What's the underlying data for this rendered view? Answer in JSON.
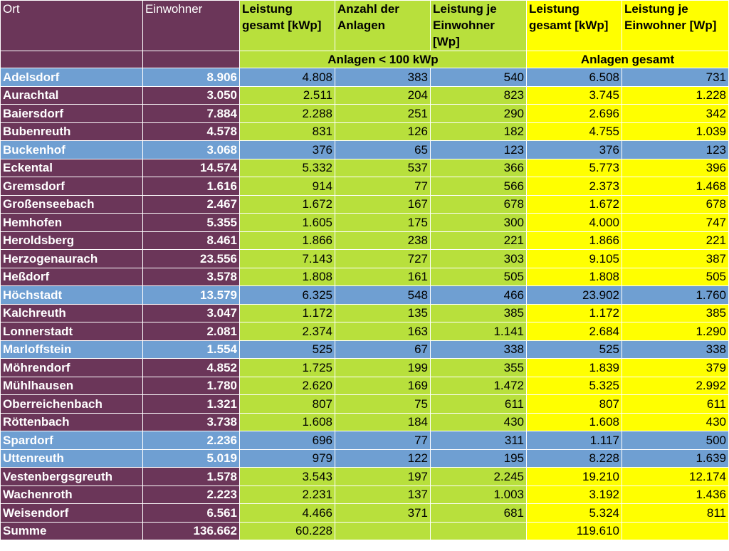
{
  "headers": {
    "ort": "Ort",
    "einwohner": "Einwohner",
    "leistung_gesamt": "Leistung gesamt [kWp]",
    "anzahl_anlagen": "Anzahl der Anlagen",
    "leistung_je_einwohner": "Leistung je Einwohner [Wp]",
    "leistung_gesamt_2": "Leistung gesamt [kWp]",
    "leistung_je_einwohner_2": "Leistung je Einwohner [Wp]",
    "group_small": "Anlagen < 100 kWp",
    "group_total": "Anlagen gesamt"
  },
  "colors": {
    "purple": "#6b3659",
    "green": "#b8e03c",
    "yellow": "#ffff00",
    "blue": "#6f9fd2"
  },
  "rows": [
    {
      "ort": "Adelsdorf",
      "einwohner": "8.906",
      "leistung": "4.808",
      "anzahl": "383",
      "je_einw": "540",
      "leistung_ges": "6.508",
      "je_einw_ges": "731",
      "highlight": true
    },
    {
      "ort": "Aurachtal",
      "einwohner": "3.050",
      "leistung": "2.511",
      "anzahl": "204",
      "je_einw": "823",
      "leistung_ges": "3.745",
      "je_einw_ges": "1.228",
      "highlight": false
    },
    {
      "ort": "Baiersdorf",
      "einwohner": "7.884",
      "leistung": "2.288",
      "anzahl": "251",
      "je_einw": "290",
      "leistung_ges": "2.696",
      "je_einw_ges": "342",
      "highlight": false
    },
    {
      "ort": "Bubenreuth",
      "einwohner": "4.578",
      "leistung": "831",
      "anzahl": "126",
      "je_einw": "182",
      "leistung_ges": "4.755",
      "je_einw_ges": "1.039",
      "highlight": false
    },
    {
      "ort": "Buckenhof",
      "einwohner": "3.068",
      "leistung": "376",
      "anzahl": "65",
      "je_einw": "123",
      "leistung_ges": "376",
      "je_einw_ges": "123",
      "highlight": true
    },
    {
      "ort": "Eckental",
      "einwohner": "14.574",
      "leistung": "5.332",
      "anzahl": "537",
      "je_einw": "366",
      "leistung_ges": "5.773",
      "je_einw_ges": "396",
      "highlight": false
    },
    {
      "ort": "Gremsdorf",
      "einwohner": "1.616",
      "leistung": "914",
      "anzahl": "77",
      "je_einw": "566",
      "leistung_ges": "2.373",
      "je_einw_ges": "1.468",
      "highlight": false
    },
    {
      "ort": "Großenseebach",
      "einwohner": "2.467",
      "leistung": "1.672",
      "anzahl": "167",
      "je_einw": "678",
      "leistung_ges": "1.672",
      "je_einw_ges": "678",
      "highlight": false
    },
    {
      "ort": "Hemhofen",
      "einwohner": "5.355",
      "leistung": "1.605",
      "anzahl": "175",
      "je_einw": "300",
      "leistung_ges": "4.000",
      "je_einw_ges": "747",
      "highlight": false
    },
    {
      "ort": "Heroldsberg",
      "einwohner": "8.461",
      "leistung": "1.866",
      "anzahl": "238",
      "je_einw": "221",
      "leistung_ges": "1.866",
      "je_einw_ges": "221",
      "highlight": false
    },
    {
      "ort": "Herzogenaurach",
      "einwohner": "23.556",
      "leistung": "7.143",
      "anzahl": "727",
      "je_einw": "303",
      "leistung_ges": "9.105",
      "je_einw_ges": "387",
      "highlight": false
    },
    {
      "ort": "Heßdorf",
      "einwohner": "3.578",
      "leistung": "1.808",
      "anzahl": "161",
      "je_einw": "505",
      "leistung_ges": "1.808",
      "je_einw_ges": "505",
      "highlight": false
    },
    {
      "ort": "Höchstadt",
      "einwohner": "13.579",
      "leistung": "6.325",
      "anzahl": "548",
      "je_einw": "466",
      "leistung_ges": "23.902",
      "je_einw_ges": "1.760",
      "highlight": true
    },
    {
      "ort": "Kalchreuth",
      "einwohner": "3.047",
      "leistung": "1.172",
      "anzahl": "135",
      "je_einw": "385",
      "leistung_ges": "1.172",
      "je_einw_ges": "385",
      "highlight": false
    },
    {
      "ort": "Lonnerstadt",
      "einwohner": "2.081",
      "leistung": "2.374",
      "anzahl": "163",
      "je_einw": "1.141",
      "leistung_ges": "2.684",
      "je_einw_ges": "1.290",
      "highlight": false
    },
    {
      "ort": "Marloffstein",
      "einwohner": "1.554",
      "leistung": "525",
      "anzahl": "67",
      "je_einw": "338",
      "leistung_ges": "525",
      "je_einw_ges": "338",
      "highlight": true
    },
    {
      "ort": "Möhrendorf",
      "einwohner": "4.852",
      "leistung": "1.725",
      "anzahl": "199",
      "je_einw": "355",
      "leistung_ges": "1.839",
      "je_einw_ges": "379",
      "highlight": false
    },
    {
      "ort": "Mühlhausen",
      "einwohner": "1.780",
      "leistung": "2.620",
      "anzahl": "169",
      "je_einw": "1.472",
      "leistung_ges": "5.325",
      "je_einw_ges": "2.992",
      "highlight": false
    },
    {
      "ort": "Oberreichenbach",
      "einwohner": "1.321",
      "leistung": "807",
      "anzahl": "75",
      "je_einw": "611",
      "leistung_ges": "807",
      "je_einw_ges": "611",
      "highlight": false
    },
    {
      "ort": "Röttenbach",
      "einwohner": "3.738",
      "leistung": "1.608",
      "anzahl": "184",
      "je_einw": "430",
      "leistung_ges": "1.608",
      "je_einw_ges": "430",
      "highlight": false
    },
    {
      "ort": "Spardorf",
      "einwohner": "2.236",
      "leistung": "696",
      "anzahl": "77",
      "je_einw": "311",
      "leistung_ges": "1.117",
      "je_einw_ges": "500",
      "highlight": true
    },
    {
      "ort": "Uttenreuth",
      "einwohner": "5.019",
      "leistung": "979",
      "anzahl": "122",
      "je_einw": "195",
      "leistung_ges": "8.228",
      "je_einw_ges": "1.639",
      "highlight": true
    },
    {
      "ort": "Vestenbergsgreuth",
      "einwohner": "1.578",
      "leistung": "3.543",
      "anzahl": "197",
      "je_einw": "2.245",
      "leistung_ges": "19.210",
      "je_einw_ges": "12.174",
      "highlight": false
    },
    {
      "ort": "Wachenroth",
      "einwohner": "2.223",
      "leistung": "2.231",
      "anzahl": "137",
      "je_einw": "1.003",
      "leistung_ges": "3.192",
      "je_einw_ges": "1.436",
      "highlight": false
    },
    {
      "ort": "Weisendorf",
      "einwohner": "6.561",
      "leistung": "4.466",
      "anzahl": "371",
      "je_einw": "681",
      "leistung_ges": "5.324",
      "je_einw_ges": "811",
      "highlight": false
    }
  ],
  "summary": {
    "label": "Summe",
    "einwohner": "136.662",
    "leistung": "60.228",
    "leistung_ges": "119.610"
  }
}
